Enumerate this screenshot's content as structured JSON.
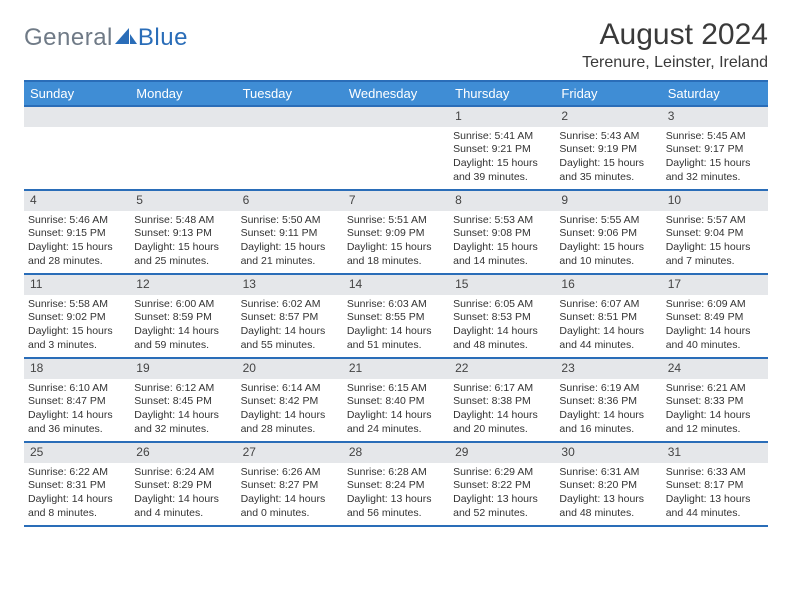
{
  "brand": {
    "part1": "General",
    "part2": "Blue"
  },
  "title": "August 2024",
  "location": "Terenure, Leinster, Ireland",
  "colors": {
    "header_bg": "#3f8dd5",
    "border": "#2a6db8",
    "daynum_bg": "#e5e7ea",
    "text": "#333333",
    "logo_gray": "#6f7a86",
    "logo_blue": "#2a6db8"
  },
  "weekdays": [
    "Sunday",
    "Monday",
    "Tuesday",
    "Wednesday",
    "Thursday",
    "Friday",
    "Saturday"
  ],
  "weeks": [
    [
      {
        "n": "",
        "empty": true
      },
      {
        "n": "",
        "empty": true
      },
      {
        "n": "",
        "empty": true
      },
      {
        "n": "",
        "empty": true
      },
      {
        "n": "1",
        "sunrise": "Sunrise: 5:41 AM",
        "sunset": "Sunset: 9:21 PM",
        "day1": "Daylight: 15 hours",
        "day2": "and 39 minutes."
      },
      {
        "n": "2",
        "sunrise": "Sunrise: 5:43 AM",
        "sunset": "Sunset: 9:19 PM",
        "day1": "Daylight: 15 hours",
        "day2": "and 35 minutes."
      },
      {
        "n": "3",
        "sunrise": "Sunrise: 5:45 AM",
        "sunset": "Sunset: 9:17 PM",
        "day1": "Daylight: 15 hours",
        "day2": "and 32 minutes."
      }
    ],
    [
      {
        "n": "4",
        "sunrise": "Sunrise: 5:46 AM",
        "sunset": "Sunset: 9:15 PM",
        "day1": "Daylight: 15 hours",
        "day2": "and 28 minutes."
      },
      {
        "n": "5",
        "sunrise": "Sunrise: 5:48 AM",
        "sunset": "Sunset: 9:13 PM",
        "day1": "Daylight: 15 hours",
        "day2": "and 25 minutes."
      },
      {
        "n": "6",
        "sunrise": "Sunrise: 5:50 AM",
        "sunset": "Sunset: 9:11 PM",
        "day1": "Daylight: 15 hours",
        "day2": "and 21 minutes."
      },
      {
        "n": "7",
        "sunrise": "Sunrise: 5:51 AM",
        "sunset": "Sunset: 9:09 PM",
        "day1": "Daylight: 15 hours",
        "day2": "and 18 minutes."
      },
      {
        "n": "8",
        "sunrise": "Sunrise: 5:53 AM",
        "sunset": "Sunset: 9:08 PM",
        "day1": "Daylight: 15 hours",
        "day2": "and 14 minutes."
      },
      {
        "n": "9",
        "sunrise": "Sunrise: 5:55 AM",
        "sunset": "Sunset: 9:06 PM",
        "day1": "Daylight: 15 hours",
        "day2": "and 10 minutes."
      },
      {
        "n": "10",
        "sunrise": "Sunrise: 5:57 AM",
        "sunset": "Sunset: 9:04 PM",
        "day1": "Daylight: 15 hours",
        "day2": "and 7 minutes."
      }
    ],
    [
      {
        "n": "11",
        "sunrise": "Sunrise: 5:58 AM",
        "sunset": "Sunset: 9:02 PM",
        "day1": "Daylight: 15 hours",
        "day2": "and 3 minutes."
      },
      {
        "n": "12",
        "sunrise": "Sunrise: 6:00 AM",
        "sunset": "Sunset: 8:59 PM",
        "day1": "Daylight: 14 hours",
        "day2": "and 59 minutes."
      },
      {
        "n": "13",
        "sunrise": "Sunrise: 6:02 AM",
        "sunset": "Sunset: 8:57 PM",
        "day1": "Daylight: 14 hours",
        "day2": "and 55 minutes."
      },
      {
        "n": "14",
        "sunrise": "Sunrise: 6:03 AM",
        "sunset": "Sunset: 8:55 PM",
        "day1": "Daylight: 14 hours",
        "day2": "and 51 minutes."
      },
      {
        "n": "15",
        "sunrise": "Sunrise: 6:05 AM",
        "sunset": "Sunset: 8:53 PM",
        "day1": "Daylight: 14 hours",
        "day2": "and 48 minutes."
      },
      {
        "n": "16",
        "sunrise": "Sunrise: 6:07 AM",
        "sunset": "Sunset: 8:51 PM",
        "day1": "Daylight: 14 hours",
        "day2": "and 44 minutes."
      },
      {
        "n": "17",
        "sunrise": "Sunrise: 6:09 AM",
        "sunset": "Sunset: 8:49 PM",
        "day1": "Daylight: 14 hours",
        "day2": "and 40 minutes."
      }
    ],
    [
      {
        "n": "18",
        "sunrise": "Sunrise: 6:10 AM",
        "sunset": "Sunset: 8:47 PM",
        "day1": "Daylight: 14 hours",
        "day2": "and 36 minutes."
      },
      {
        "n": "19",
        "sunrise": "Sunrise: 6:12 AM",
        "sunset": "Sunset: 8:45 PM",
        "day1": "Daylight: 14 hours",
        "day2": "and 32 minutes."
      },
      {
        "n": "20",
        "sunrise": "Sunrise: 6:14 AM",
        "sunset": "Sunset: 8:42 PM",
        "day1": "Daylight: 14 hours",
        "day2": "and 28 minutes."
      },
      {
        "n": "21",
        "sunrise": "Sunrise: 6:15 AM",
        "sunset": "Sunset: 8:40 PM",
        "day1": "Daylight: 14 hours",
        "day2": "and 24 minutes."
      },
      {
        "n": "22",
        "sunrise": "Sunrise: 6:17 AM",
        "sunset": "Sunset: 8:38 PM",
        "day1": "Daylight: 14 hours",
        "day2": "and 20 minutes."
      },
      {
        "n": "23",
        "sunrise": "Sunrise: 6:19 AM",
        "sunset": "Sunset: 8:36 PM",
        "day1": "Daylight: 14 hours",
        "day2": "and 16 minutes."
      },
      {
        "n": "24",
        "sunrise": "Sunrise: 6:21 AM",
        "sunset": "Sunset: 8:33 PM",
        "day1": "Daylight: 14 hours",
        "day2": "and 12 minutes."
      }
    ],
    [
      {
        "n": "25",
        "sunrise": "Sunrise: 6:22 AM",
        "sunset": "Sunset: 8:31 PM",
        "day1": "Daylight: 14 hours",
        "day2": "and 8 minutes."
      },
      {
        "n": "26",
        "sunrise": "Sunrise: 6:24 AM",
        "sunset": "Sunset: 8:29 PM",
        "day1": "Daylight: 14 hours",
        "day2": "and 4 minutes."
      },
      {
        "n": "27",
        "sunrise": "Sunrise: 6:26 AM",
        "sunset": "Sunset: 8:27 PM",
        "day1": "Daylight: 14 hours",
        "day2": "and 0 minutes."
      },
      {
        "n": "28",
        "sunrise": "Sunrise: 6:28 AM",
        "sunset": "Sunset: 8:24 PM",
        "day1": "Daylight: 13 hours",
        "day2": "and 56 minutes."
      },
      {
        "n": "29",
        "sunrise": "Sunrise: 6:29 AM",
        "sunset": "Sunset: 8:22 PM",
        "day1": "Daylight: 13 hours",
        "day2": "and 52 minutes."
      },
      {
        "n": "30",
        "sunrise": "Sunrise: 6:31 AM",
        "sunset": "Sunset: 8:20 PM",
        "day1": "Daylight: 13 hours",
        "day2": "and 48 minutes."
      },
      {
        "n": "31",
        "sunrise": "Sunrise: 6:33 AM",
        "sunset": "Sunset: 8:17 PM",
        "day1": "Daylight: 13 hours",
        "day2": "and 44 minutes."
      }
    ]
  ]
}
